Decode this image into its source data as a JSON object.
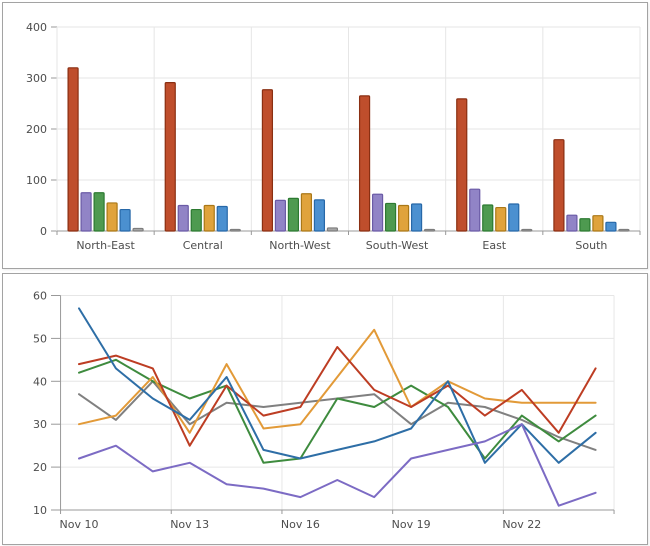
{
  "charts": {
    "bar": {
      "type": "bar",
      "categories": [
        "North-East",
        "Central",
        "North-West",
        "South-West",
        "East",
        "South"
      ],
      "series": [
        {
          "name": "red",
          "color": "#bf4e2c",
          "border": "#8a2f12",
          "values": [
            320,
            291,
            277,
            265,
            259,
            179
          ]
        },
        {
          "name": "purple",
          "color": "#9184c6",
          "border": "#6b5ba6",
          "values": [
            75,
            50,
            60,
            72,
            82,
            31
          ]
        },
        {
          "name": "green",
          "color": "#4e9a50",
          "border": "#2c7a31",
          "values": [
            75,
            42,
            64,
            54,
            51,
            24
          ]
        },
        {
          "name": "orange",
          "color": "#e0a33c",
          "border": "#aa7817",
          "values": [
            55,
            50,
            73,
            50,
            46,
            30
          ]
        },
        {
          "name": "blue",
          "color": "#4b90d0",
          "border": "#2768a8",
          "values": [
            42,
            48,
            61,
            53,
            53,
            17
          ]
        },
        {
          "name": "gray",
          "color": "#a6a6a6",
          "border": "#7d7d7d",
          "values": [
            5,
            3,
            6,
            3,
            2,
            2
          ]
        }
      ],
      "ylim": [
        0,
        400
      ],
      "ytick_labels": [
        "0",
        "100",
        "200",
        "300",
        "400"
      ],
      "yticks": [
        0,
        100,
        200,
        300,
        400
      ],
      "grid_color": "#e6e6e6",
      "axis_color": "#999999",
      "legend": "none"
    },
    "line": {
      "type": "line",
      "x_start_label": "Nov 10",
      "x_labels": [
        "Nov 10",
        "Nov 13",
        "Nov 16",
        "Nov 19",
        "Nov 22"
      ],
      "label_day_indices": [
        0,
        3,
        6,
        9,
        12
      ],
      "num_points": 15,
      "series": [
        {
          "name": "gray",
          "color": "#808080",
          "values": [
            37,
            31,
            40,
            30,
            35,
            34,
            35,
            36,
            37,
            30,
            35,
            34,
            31,
            27,
            24
          ]
        },
        {
          "name": "green",
          "color": "#3e8b3e",
          "values": [
            42,
            45,
            40,
            36,
            39,
            21,
            22,
            36,
            34,
            39,
            34,
            22,
            32,
            26,
            32
          ]
        },
        {
          "name": "orange",
          "color": "#e29a38",
          "values": [
            30,
            32,
            41,
            28,
            44,
            29,
            30,
            41,
            52,
            34,
            40,
            36,
            35,
            35,
            35
          ]
        },
        {
          "name": "red",
          "color": "#bd3d23",
          "values": [
            44,
            46,
            43,
            25,
            39,
            32,
            34,
            48,
            38,
            34,
            39,
            32,
            38,
            28,
            43
          ]
        },
        {
          "name": "blue",
          "color": "#2e6ea6",
          "values": [
            57,
            43,
            36,
            31,
            41,
            24,
            22,
            24,
            26,
            29,
            40,
            21,
            30,
            21,
            28
          ]
        },
        {
          "name": "purple",
          "color": "#7c6bc4",
          "values": [
            22,
            25,
            19,
            21,
            16,
            15,
            13,
            17,
            13,
            22,
            24,
            26,
            30,
            11,
            14
          ]
        }
      ],
      "ylim": [
        10,
        60
      ],
      "ytick_labels": [
        "10",
        "20",
        "30",
        "40",
        "50",
        "60"
      ],
      "yticks": [
        10,
        20,
        30,
        40,
        50,
        60
      ],
      "grid_color": "#e6e6e6",
      "axis_color": "#999999",
      "legend": "none"
    }
  }
}
